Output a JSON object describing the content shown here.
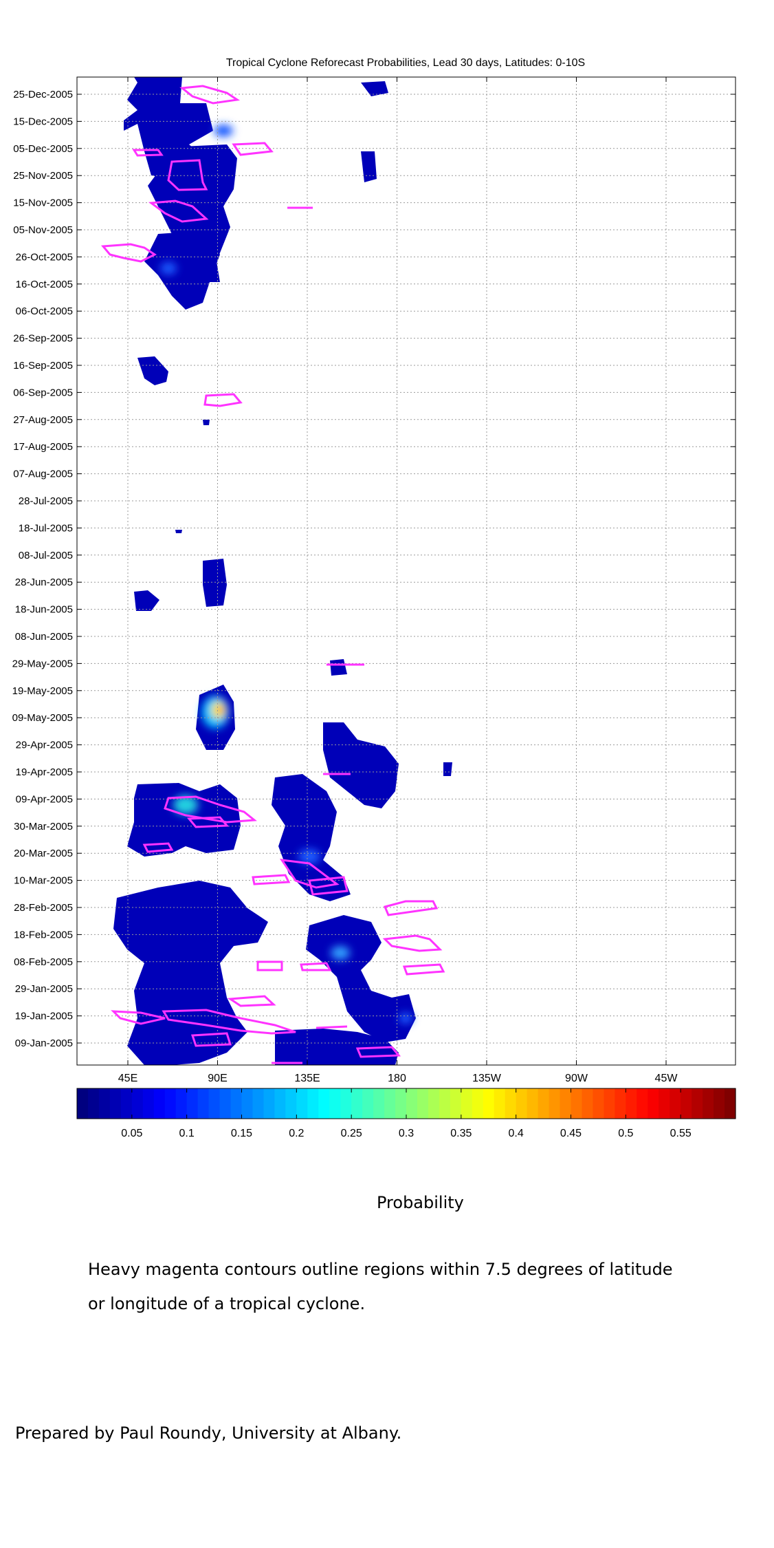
{
  "chart_data": {
    "type": "heatmap",
    "title": "Tropical Cyclone Reforecast Probabilities, Lead 30 days, Latitudes: 0-10S",
    "y_tick_labels": [
      "25-Dec-2005",
      "15-Dec-2005",
      "05-Dec-2005",
      "25-Nov-2005",
      "15-Nov-2005",
      "05-Nov-2005",
      "26-Oct-2005",
      "16-Oct-2005",
      "06-Oct-2005",
      "26-Sep-2005",
      "16-Sep-2005",
      "06-Sep-2005",
      "27-Aug-2005",
      "17-Aug-2005",
      "07-Aug-2005",
      "28-Jul-2005",
      "18-Jul-2005",
      "08-Jul-2005",
      "28-Jun-2005",
      "18-Jun-2005",
      "08-Jun-2005",
      "29-May-2005",
      "19-May-2005",
      "09-May-2005",
      "29-Apr-2005",
      "19-Apr-2005",
      "09-Apr-2005",
      "30-Mar-2005",
      "20-Mar-2005",
      "10-Mar-2005",
      "28-Feb-2005",
      "18-Feb-2005",
      "08-Feb-2005",
      "29-Jan-2005",
      "19-Jan-2005",
      "09-Jan-2005"
    ],
    "x_tick_labels": [
      "45E",
      "90E",
      "135E",
      "180",
      "135W",
      "90W",
      "45W"
    ],
    "colorbar": {
      "label": "Probability",
      "tick_labels": [
        "0.05",
        "0.1",
        "0.15",
        "0.2",
        "0.25",
        "0.3",
        "0.35",
        "0.4",
        "0.45",
        "0.5",
        "0.55"
      ],
      "range": [
        0,
        0.6
      ],
      "colormap": "jet"
    },
    "grid": true,
    "contour_color": "#ff33ff",
    "probability_regions": [
      {
        "lon": 82,
        "day": 359,
        "p": 0.08
      },
      {
        "lon": 68,
        "day": 350,
        "p": 0.1
      },
      {
        "lon": 101,
        "day": 348,
        "p": 0.14
      },
      {
        "lon": 72,
        "day": 330,
        "p": 0.1
      },
      {
        "lon": 103,
        "day": 325,
        "p": 0.08
      },
      {
        "lon": 97,
        "day": 305,
        "p": 0.08
      },
      {
        "lon": 81,
        "day": 295,
        "p": 0.12
      },
      {
        "lon": 74,
        "day": 285,
        "p": 0.13
      },
      {
        "lon": 77,
        "day": 276,
        "p": 0.08
      },
      {
        "lon": 175,
        "day": 324,
        "p": 0.06
      },
      {
        "lon": 73,
        "day": 250,
        "p": 0.06
      },
      {
        "lon": 90,
        "day": 175,
        "p": 0.07
      },
      {
        "lon": 55,
        "day": 161,
        "p": 0.06
      },
      {
        "lon": 92,
        "day": 130,
        "p": 0.4
      },
      {
        "lon": 77,
        "day": 121,
        "p": 0.05
      },
      {
        "lon": 159,
        "day": 110,
        "p": 0.1
      },
      {
        "lon": 168,
        "day": 98,
        "p": 0.08
      },
      {
        "lon": 78,
        "day": 90,
        "p": 0.22
      },
      {
        "lon": 60,
        "day": 86,
        "p": 0.08
      },
      {
        "lon": 138,
        "day": 84,
        "p": 0.1
      },
      {
        "lon": 145,
        "day": 72,
        "p": 0.15
      },
      {
        "lon": 70,
        "day": 58,
        "p": 0.1
      },
      {
        "lon": 99,
        "day": 53,
        "p": 0.08
      },
      {
        "lon": 155,
        "day": 40,
        "p": 0.22
      },
      {
        "lon": 166,
        "day": 20,
        "p": 0.08
      },
      {
        "lon": 63,
        "day": 20,
        "p": 0.1
      },
      {
        "lon": 88,
        "day": 12,
        "p": 0.08
      }
    ]
  },
  "caption": {
    "line1": "Heavy magenta contours outline regions within 7.5 degrees of latitude",
    "line2": "or longitude of a tropical cyclone."
  },
  "credit": "Prepared by Paul Roundy, University at Albany."
}
